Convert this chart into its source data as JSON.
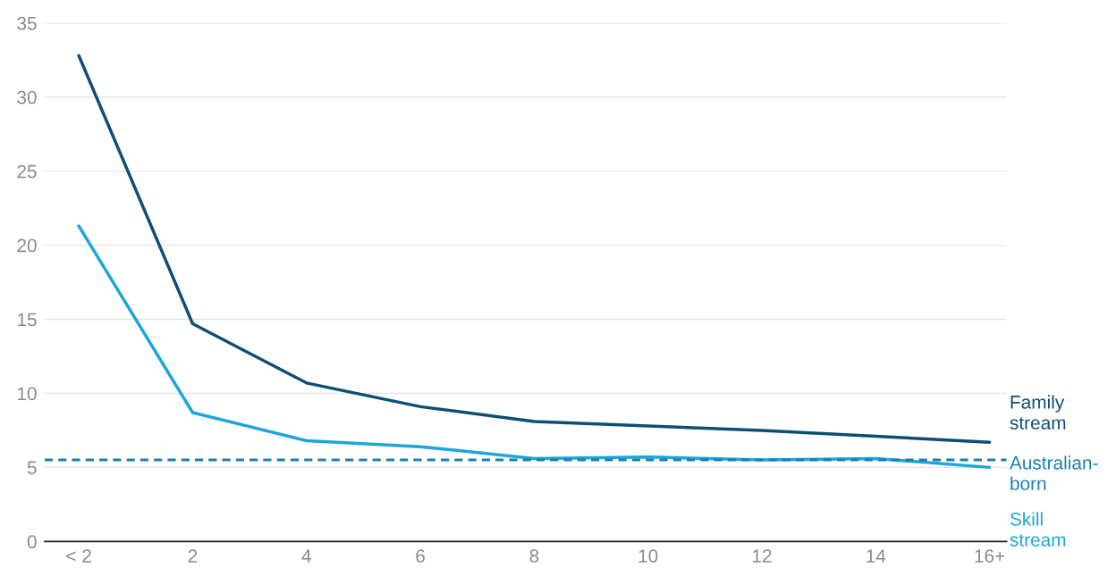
{
  "chart_data": {
    "type": "line",
    "categories": [
      "< 2",
      "2",
      "4",
      "6",
      "8",
      "10",
      "12",
      "14",
      "16+"
    ],
    "series": [
      {
        "name": "Family stream",
        "color": "#0d4f73",
        "values": [
          32.8,
          14.7,
          10.7,
          9.1,
          8.1,
          7.8,
          7.5,
          7.1,
          6.7
        ]
      },
      {
        "name": "Skill stream",
        "color": "#1ca6d9",
        "values": [
          21.3,
          8.7,
          6.8,
          6.4,
          5.6,
          5.7,
          5.5,
          5.6,
          5.0
        ]
      }
    ],
    "ref_lines": [
      {
        "axis": "y",
        "value": 5.5,
        "label": "Australian-born",
        "color": "#1a80b0",
        "line_style": "dashed"
      }
    ],
    "ylim": [
      0,
      35
    ],
    "yticks": [
      0,
      5,
      10,
      15,
      20,
      25,
      30,
      35
    ],
    "grid": "y",
    "marker": "none",
    "line_style": "solid"
  }
}
